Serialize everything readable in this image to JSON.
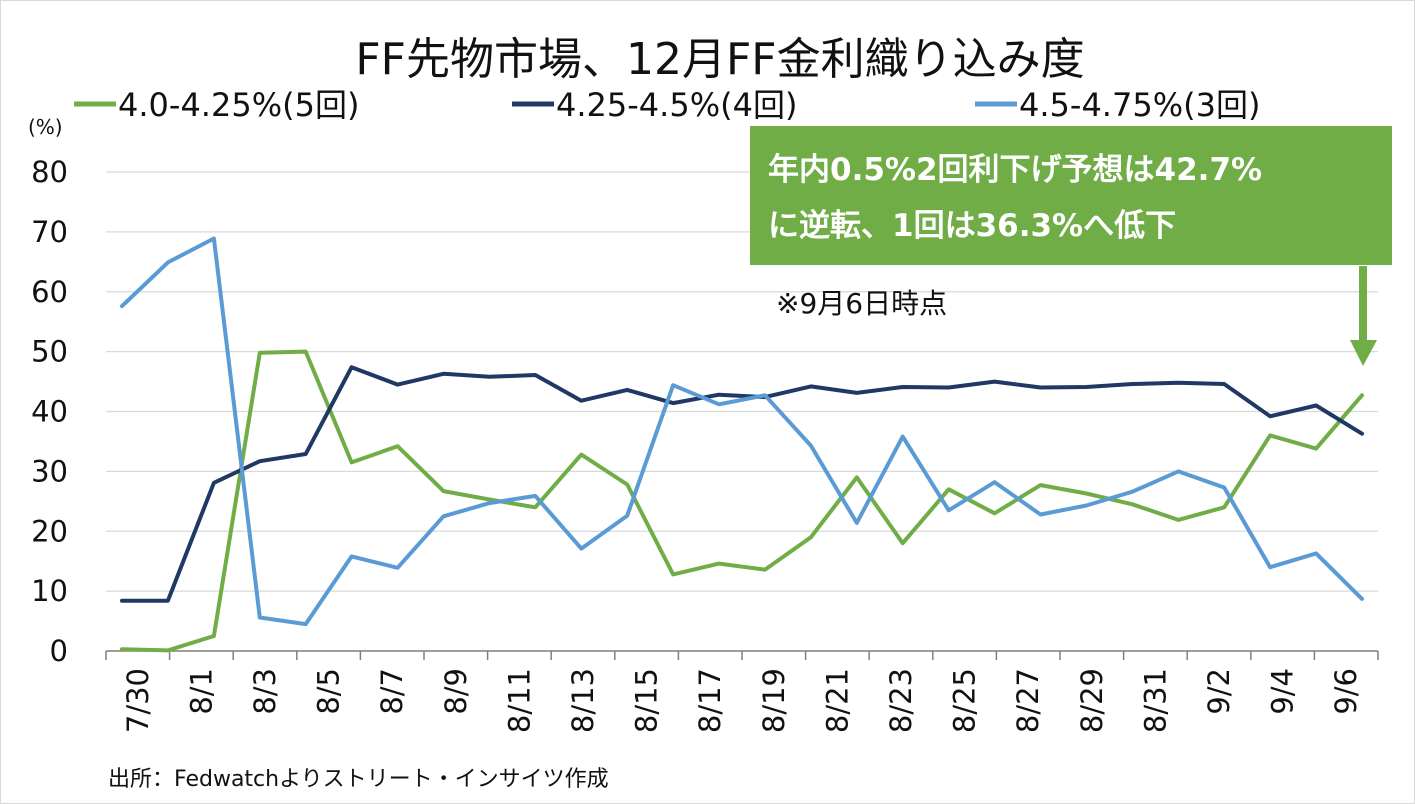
{
  "chart_data": {
    "type": "line",
    "title": "FF先物市場、12月FF金利織り込み度",
    "ylabel": "(%)",
    "xlabel": "",
    "ylim": [
      0,
      80
    ],
    "yticks": [
      "80",
      "70",
      "60",
      "50",
      "40",
      "30",
      "20",
      "10",
      "0"
    ],
    "x_tick_labels": [
      "7/30",
      "8/1",
      "8/3",
      "8/5",
      "8/7",
      "8/9",
      "8/11",
      "8/13",
      "8/15",
      "8/17",
      "8/19",
      "8/21",
      "8/23",
      "8/25",
      "8/27",
      "8/29",
      "8/31",
      "9/2",
      "9/4",
      "9/6"
    ],
    "x": [
      "7/30",
      "7/31",
      "8/1",
      "8/2",
      "8/5",
      "8/6",
      "8/7",
      "8/8",
      "8/9",
      "8/12",
      "8/13",
      "8/14",
      "8/15",
      "8/16",
      "8/19",
      "8/20",
      "8/21",
      "8/22",
      "8/23",
      "8/26",
      "8/27",
      "8/28",
      "8/29",
      "8/30",
      "9/3",
      "9/4",
      "9/5",
      "9/6"
    ],
    "grid": true,
    "legend_position": "top",
    "series": [
      {
        "name": "4.0-4.25%(5回)",
        "color": "#70ad47",
        "values": [
          0.3,
          0.1,
          2.5,
          49.8,
          50.0,
          31.5,
          34.2,
          26.7,
          25.3,
          24.0,
          32.8,
          27.8,
          12.8,
          14.6,
          13.6,
          19.0,
          29.0,
          18.0,
          27.0,
          23.0,
          27.7,
          26.3,
          24.5,
          21.9,
          24.0,
          36.0,
          33.8,
          42.7
        ]
      },
      {
        "name": "4.25-4.5%(4回)",
        "color": "#1f3864",
        "values": [
          8.4,
          8.4,
          28.1,
          31.7,
          32.9,
          47.4,
          44.5,
          46.3,
          45.8,
          46.1,
          41.8,
          43.6,
          41.4,
          42.8,
          42.4,
          44.2,
          43.1,
          44.1,
          44.0,
          45.0,
          44.0,
          44.1,
          44.6,
          44.8,
          44.6,
          39.2,
          41.0,
          36.3
        ]
      },
      {
        "name": "4.5-4.75%(3回)",
        "color": "#5b9bd5",
        "values": [
          57.6,
          64.9,
          68.9,
          5.6,
          4.5,
          15.8,
          13.9,
          22.5,
          24.7,
          25.9,
          17.1,
          22.6,
          44.4,
          41.2,
          42.7,
          34.3,
          21.4,
          35.8,
          23.5,
          28.2,
          22.8,
          24.3,
          26.6,
          30.0,
          27.3,
          14.0,
          16.3,
          8.7
        ]
      }
    ],
    "annotation": {
      "lines": [
        "年内0.5%2回利下げ予想は42.7%",
        "に逆転、1回は36.3%へ低下"
      ],
      "background_color": "#70ad47",
      "arrow_color": "#70ad47"
    },
    "note": "※9月6日時点",
    "source": "出所：Fedwatchよりストリート・インサイツ作成"
  }
}
